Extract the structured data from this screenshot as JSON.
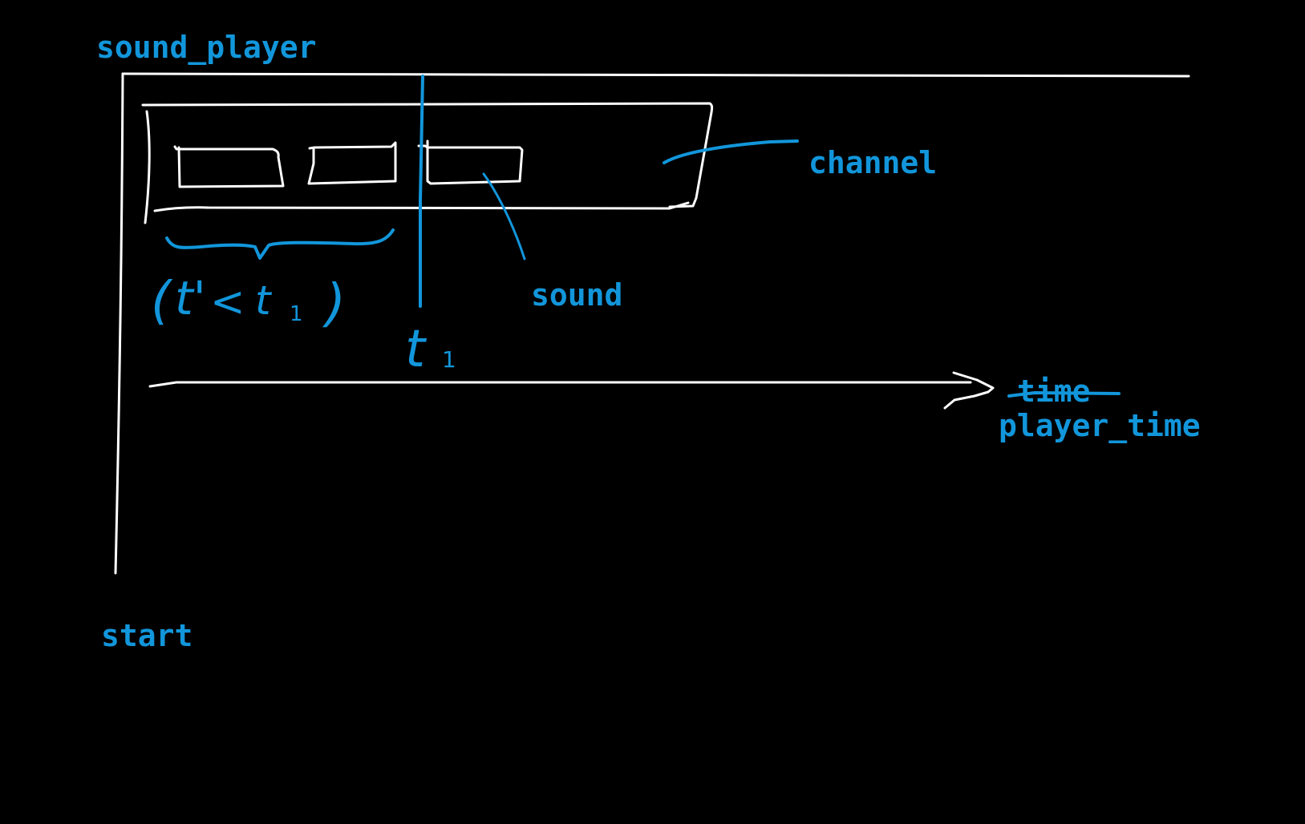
{
  "colors": {
    "background": "#000000",
    "ink": "#ffffff",
    "accent": "#1296db"
  },
  "labels": {
    "title": "sound_player",
    "channel": "channel",
    "sound": "sound",
    "start": "start",
    "time_struck": "time",
    "player_time": "player_time",
    "t1": "t",
    "t1_subscript": "1",
    "condition_open": "(",
    "condition_t_prime": "t'",
    "condition_lt": "<",
    "condition_t1": "t",
    "condition_t1_sub": "1",
    "condition_close": ")"
  }
}
